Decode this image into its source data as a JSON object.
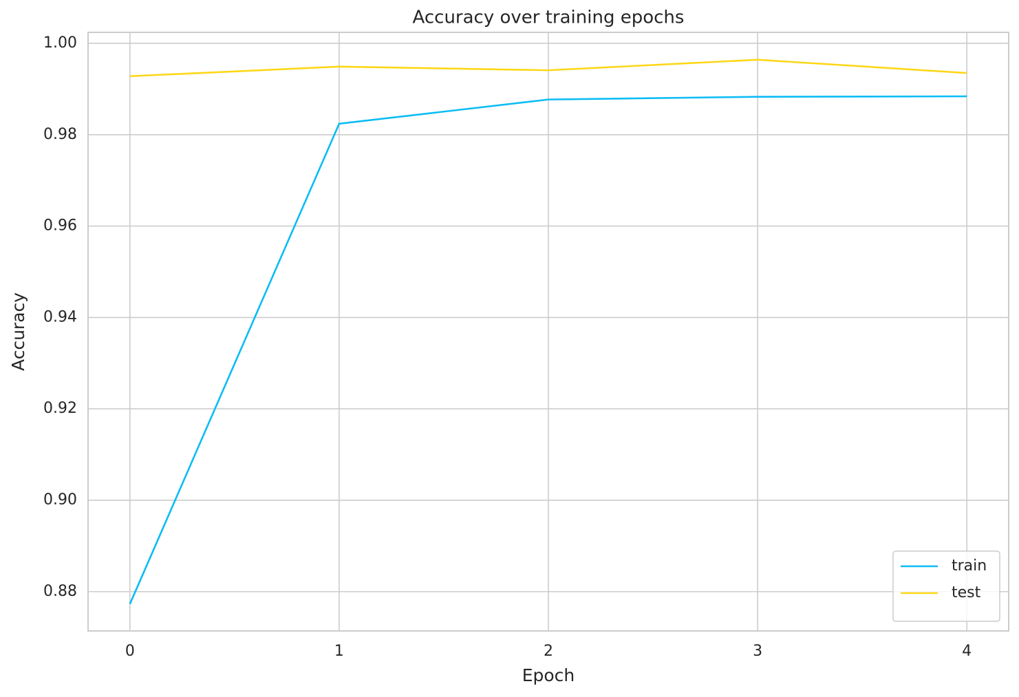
{
  "chart_data": {
    "type": "line",
    "title": "Accuracy over training epochs",
    "x_label": "Epoch",
    "y_label": "Accuracy",
    "x": [
      0,
      1,
      2,
      3,
      4
    ],
    "series": [
      {
        "name": "train",
        "color": "#0bbcf5",
        "values": [
          0.8773,
          0.9824,
          0.9877,
          0.9883,
          0.9884
        ]
      },
      {
        "name": "test",
        "color": "#fdd718",
        "values": [
          0.9928,
          0.9949,
          0.9941,
          0.9964,
          0.9935
        ]
      }
    ],
    "xlim": [
      -0.2,
      4.2
    ],
    "xticks": [
      0,
      1,
      2,
      3,
      4
    ],
    "ylim": [
      0.8714,
      1.0024
    ],
    "yticks": [
      0.88,
      {
        "value": 0.9,
        "label": "0.90"
      },
      0.92,
      0.94,
      0.96,
      0.98,
      {
        "value": 1.0,
        "label": "1.00"
      }
    ],
    "grid": true,
    "legend_position": "lower right"
  }
}
